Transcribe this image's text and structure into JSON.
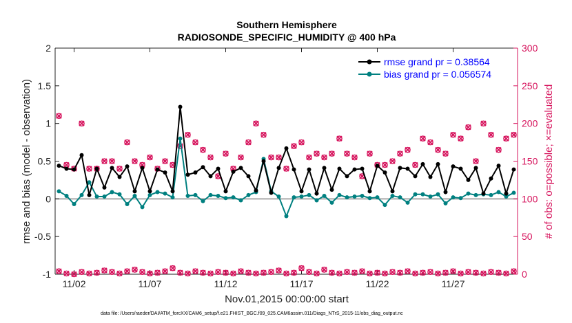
{
  "chart_data": {
    "type": "line",
    "title_line1": "Southern Hemisphere",
    "title_line2": "RADIOSONDE_SPECIFIC_HUMIDITY @ 400 hPa",
    "xlabel": "Nov.01,2015 00:00:00 start",
    "ylabel_left": "rmse and bias (model - observation)",
    "ylabel_right": "# of obs: o=possible; ×=evaluated",
    "footnote": "data file: /Users/raeder/DAI/ATM_forcXX/CAM6_setup/f.e21.FHIST_BGC.f09_025.CAM6assim.011/Diags_NTrS_2015-11/obs_diag_output.nc",
    "x_tick_labels": [
      "11/02",
      "11/07",
      "11/12",
      "11/17",
      "11/22",
      "11/27"
    ],
    "x_tick_values": [
      2,
      7,
      12,
      17,
      22,
      27
    ],
    "xlim": [
      0.75,
      31.25
    ],
    "ylim_left": [
      -1,
      2
    ],
    "y_ticks_left": [
      "-1",
      "-0.5",
      "0",
      "0.5",
      "1",
      "1.5",
      "2"
    ],
    "ylim_right": [
      0,
      300
    ],
    "y_ticks_right": [
      "0",
      "50",
      "100",
      "150",
      "200",
      "250",
      "300"
    ],
    "legend": {
      "location": "top-right",
      "rmse_label": "rmse grand pr = 0.38564",
      "bias_label": "bias grand pr = 0.056574"
    },
    "colors": {
      "rmse": "#000000",
      "bias": "#008080",
      "obs": "#d6135c",
      "zero_line": "#aaaaaa",
      "legend_text": "#0000ff"
    },
    "x": [
      1.0,
      1.5,
      2.0,
      2.5,
      3.0,
      3.5,
      4.0,
      4.5,
      5.0,
      5.5,
      6.0,
      6.5,
      7.0,
      7.5,
      8.0,
      8.5,
      9.0,
      9.5,
      10.0,
      10.5,
      11.0,
      11.5,
      12.0,
      12.5,
      13.0,
      13.5,
      14.0,
      14.5,
      15.0,
      15.5,
      16.0,
      16.5,
      17.0,
      17.5,
      18.0,
      18.5,
      19.0,
      19.5,
      20.0,
      20.5,
      21.0,
      21.5,
      22.0,
      22.5,
      23.0,
      23.5,
      24.0,
      24.5,
      25.0,
      25.5,
      26.0,
      26.5,
      27.0,
      27.5,
      28.0,
      28.5,
      29.0,
      29.5,
      30.0,
      30.5,
      31.0
    ],
    "series": [
      {
        "name": "rmse",
        "values": [
          0.44,
          0.4,
          0.39,
          0.58,
          0.05,
          0.4,
          0.15,
          0.41,
          0.29,
          0.43,
          0.1,
          0.41,
          0.1,
          0.39,
          0.35,
          0.1,
          1.22,
          0.32,
          0.35,
          0.42,
          0.3,
          0.4,
          0.1,
          0.36,
          0.41,
          0.3,
          0.11,
          0.5,
          0.08,
          0.41,
          0.67,
          0.39,
          0.1,
          0.39,
          0.07,
          0.41,
          0.12,
          0.4,
          0.3,
          0.39,
          0.4,
          0.1,
          0.44,
          0.35,
          0.1,
          0.41,
          0.4,
          0.3,
          0.46,
          0.29,
          0.46,
          0.09,
          0.43,
          0.4,
          0.25,
          0.41,
          0.07,
          0.27,
          0.44,
          0.07,
          0.39
        ]
      },
      {
        "name": "bias",
        "values": [
          0.1,
          0.04,
          -0.07,
          0.05,
          0.22,
          0.03,
          0.03,
          0.09,
          0.06,
          -0.07,
          0.04,
          -0.11,
          0.05,
          0.09,
          0.07,
          0.02,
          0.8,
          0.04,
          0.05,
          -0.03,
          0.05,
          0.04,
          0.01,
          0.02,
          -0.02,
          0.05,
          0.09,
          0.53,
          0.1,
          0.03,
          -0.23,
          0.02,
          0.03,
          0.05,
          -0.02,
          0.04,
          -0.05,
          0.05,
          0.02,
          0.03,
          0.04,
          0.01,
          0.02,
          -0.08,
          0.04,
          0.02,
          -0.05,
          0.06,
          0.06,
          0.03,
          0.06,
          -0.06,
          0.02,
          0.01,
          0.07,
          0.05,
          0.06,
          0.05,
          0.09,
          0.03,
          0.08
        ]
      }
    ],
    "obs_possible": [
      210,
      145,
      140,
      200,
      140,
      140,
      150,
      150,
      140,
      175,
      150,
      145,
      155,
      140,
      150,
      145,
      170,
      185,
      175,
      165,
      155,
      130,
      160,
      140,
      155,
      175,
      200,
      185,
      155,
      155,
      140,
      170,
      175,
      155,
      160,
      155,
      160,
      180,
      160,
      155,
      130,
      160,
      145,
      145,
      150,
      160,
      165,
      145,
      180,
      175,
      165,
      160,
      185,
      180,
      195,
      150,
      200,
      185,
      165,
      180,
      185
    ],
    "obs_evaluated": [
      4,
      1,
      0,
      3,
      1,
      2,
      5,
      3,
      1,
      4,
      6,
      3,
      1,
      2,
      4,
      8,
      2,
      1,
      4,
      2,
      1,
      3,
      2,
      1,
      4,
      2,
      1,
      2,
      3,
      5,
      1,
      2,
      8,
      3,
      1,
      6,
      2,
      1,
      3,
      2,
      4,
      1,
      2,
      1,
      3,
      2,
      4,
      1,
      2,
      3,
      1,
      2,
      4,
      1,
      3,
      2,
      1,
      3,
      2,
      1,
      4
    ]
  }
}
